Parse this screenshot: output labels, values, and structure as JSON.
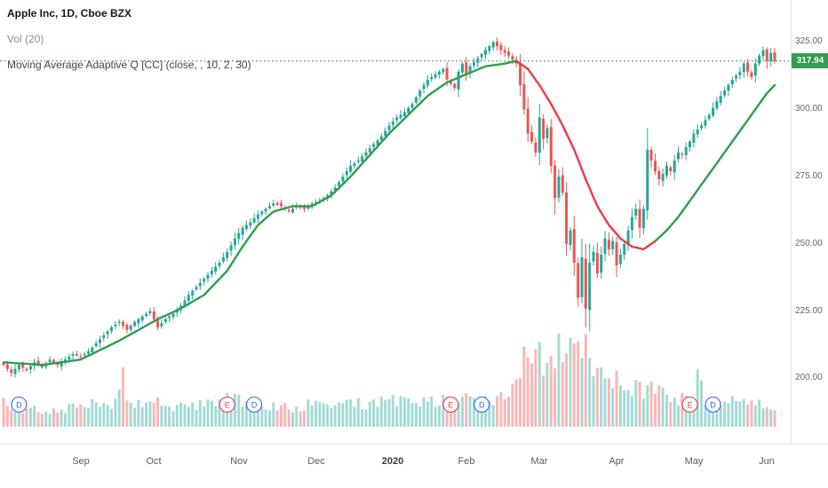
{
  "legend": {
    "symbol_title": "Apple Inc, 1D, Cboe BZX",
    "volume_label": "Vol (20)",
    "ma_label": "Moving Average Adaptive Q [CC] (close, , 10, 2, 30)"
  },
  "chart_data": {
    "type": "candlestick",
    "title": "Apple Inc, 1D, Cboe BZX",
    "symbol": "Apple Inc",
    "interval": "1D",
    "exchange": "Cboe BZX",
    "last_price": 317.94,
    "last_price_label": "317.94",
    "y_axis": {
      "range": [
        183,
        338
      ],
      "ticks": [
        {
          "v": 200,
          "label": "200.00"
        },
        {
          "v": 225,
          "label": "225.00"
        },
        {
          "v": 250,
          "label": "250.00"
        },
        {
          "v": 275,
          "label": "275.00"
        },
        {
          "v": 300,
          "label": "300.00"
        },
        {
          "v": 325,
          "label": "325.00"
        }
      ]
    },
    "x_axis": {
      "days": 200,
      "labels": [
        {
          "label": "Sep",
          "day": 20,
          "bold": false
        },
        {
          "label": "Oct",
          "day": 39,
          "bold": false
        },
        {
          "label": "Nov",
          "day": 61,
          "bold": false
        },
        {
          "label": "Dec",
          "day": 81,
          "bold": false
        },
        {
          "label": "2020",
          "day": 101,
          "bold": true
        },
        {
          "label": "Feb",
          "day": 120,
          "bold": false
        },
        {
          "label": "Mar",
          "day": 139,
          "bold": false
        },
        {
          "label": "Apr",
          "day": 159,
          "bold": false
        },
        {
          "label": "May",
          "day": 179,
          "bold": false
        },
        {
          "label": "Jun",
          "day": 198,
          "bold": false
        }
      ]
    },
    "price_anchors": [
      [
        0,
        205
      ],
      [
        2,
        202
      ],
      [
        4,
        205
      ],
      [
        6,
        203
      ],
      [
        8,
        206
      ],
      [
        10,
        204
      ],
      [
        12,
        207
      ],
      [
        14,
        205
      ],
      [
        16,
        207
      ],
      [
        18,
        209
      ],
      [
        20,
        208
      ],
      [
        22,
        210
      ],
      [
        24,
        213
      ],
      [
        26,
        216
      ],
      [
        28,
        219
      ],
      [
        30,
        221
      ],
      [
        32,
        218
      ],
      [
        34,
        221
      ],
      [
        36,
        223
      ],
      [
        38,
        225
      ],
      [
        40,
        219
      ],
      [
        42,
        222
      ],
      [
        44,
        224
      ],
      [
        46,
        227
      ],
      [
        48,
        231
      ],
      [
        50,
        234
      ],
      [
        52,
        237
      ],
      [
        54,
        240
      ],
      [
        56,
        243
      ],
      [
        58,
        247
      ],
      [
        60,
        252
      ],
      [
        62,
        256
      ],
      [
        64,
        258
      ],
      [
        66,
        261
      ],
      [
        68,
        263
      ],
      [
        70,
        265
      ],
      [
        72,
        264
      ],
      [
        74,
        262
      ],
      [
        76,
        264
      ],
      [
        78,
        263
      ],
      [
        80,
        265
      ],
      [
        82,
        266
      ],
      [
        84,
        268
      ],
      [
        86,
        271
      ],
      [
        88,
        275
      ],
      [
        90,
        279
      ],
      [
        92,
        281
      ],
      [
        94,
        284
      ],
      [
        96,
        287
      ],
      [
        98,
        290
      ],
      [
        100,
        294
      ],
      [
        102,
        297
      ],
      [
        104,
        299
      ],
      [
        106,
        302
      ],
      [
        108,
        307
      ],
      [
        110,
        311
      ],
      [
        112,
        313
      ],
      [
        114,
        315
      ],
      [
        115,
        311
      ],
      [
        117,
        308
      ],
      [
        118,
        314
      ],
      [
        119,
        317
      ],
      [
        120,
        313
      ],
      [
        121,
        316
      ],
      [
        123,
        319
      ],
      [
        125,
        322
      ],
      [
        127,
        325
      ],
      [
        129,
        322
      ],
      [
        131,
        320
      ],
      [
        133,
        317
      ],
      [
        134,
        309
      ],
      [
        135,
        300
      ],
      [
        136,
        291
      ],
      [
        137,
        288
      ],
      [
        138,
        284
      ],
      [
        139,
        297
      ],
      [
        140,
        289
      ],
      [
        141,
        293
      ],
      [
        142,
        279
      ],
      [
        143,
        267
      ],
      [
        144,
        275
      ],
      [
        145,
        269
      ],
      [
        146,
        250
      ],
      [
        147,
        255
      ],
      [
        148,
        243
      ],
      [
        149,
        230
      ],
      [
        150,
        245
      ],
      [
        151,
        226
      ],
      [
        152,
        243
      ],
      [
        153,
        247
      ],
      [
        154,
        239
      ],
      [
        155,
        246
      ],
      [
        156,
        252
      ],
      [
        157,
        248
      ],
      [
        158,
        251
      ],
      [
        159,
        242
      ],
      [
        160,
        246
      ],
      [
        161,
        250
      ],
      [
        162,
        255
      ],
      [
        163,
        260
      ],
      [
        164,
        263
      ],
      [
        165,
        256
      ],
      [
        166,
        263
      ],
      [
        167,
        285
      ],
      [
        168,
        281
      ],
      [
        169,
        277
      ],
      [
        170,
        274
      ],
      [
        171,
        276
      ],
      [
        172,
        279
      ],
      [
        173,
        277
      ],
      [
        174,
        281
      ],
      [
        175,
        284
      ],
      [
        176,
        283
      ],
      [
        177,
        286
      ],
      [
        178,
        288
      ],
      [
        179,
        291
      ],
      [
        181,
        294
      ],
      [
        183,
        298
      ],
      [
        185,
        303
      ],
      [
        187,
        307
      ],
      [
        189,
        311
      ],
      [
        191,
        314
      ],
      [
        192,
        317
      ],
      [
        193,
        314
      ],
      [
        194,
        312
      ],
      [
        195,
        317
      ],
      [
        196,
        320
      ],
      [
        197,
        322
      ],
      [
        198,
        318
      ],
      [
        199,
        321
      ],
      [
        200,
        317.94
      ]
    ],
    "ma": {
      "name": "Moving Average Adaptive Q",
      "red_segment": [
        133,
        169
      ],
      "anchors": [
        [
          0,
          206
        ],
        [
          10,
          205
        ],
        [
          20,
          207
        ],
        [
          30,
          214
        ],
        [
          40,
          222
        ],
        [
          46,
          226
        ],
        [
          52,
          231
        ],
        [
          58,
          240
        ],
        [
          62,
          249
        ],
        [
          66,
          257
        ],
        [
          70,
          262
        ],
        [
          75,
          264
        ],
        [
          80,
          264
        ],
        [
          85,
          268
        ],
        [
          90,
          275
        ],
        [
          95,
          283
        ],
        [
          100,
          291
        ],
        [
          105,
          298
        ],
        [
          110,
          305
        ],
        [
          115,
          310
        ],
        [
          120,
          313
        ],
        [
          125,
          316
        ],
        [
          130,
          317
        ],
        [
          133,
          318
        ],
        [
          136,
          315
        ],
        [
          139,
          309
        ],
        [
          142,
          302
        ],
        [
          145,
          294
        ],
        [
          148,
          285
        ],
        [
          151,
          274
        ],
        [
          154,
          264
        ],
        [
          157,
          257
        ],
        [
          160,
          252
        ],
        [
          163,
          249
        ],
        [
          166,
          248
        ],
        [
          169,
          251
        ],
        [
          172,
          255
        ],
        [
          175,
          260
        ],
        [
          178,
          266
        ],
        [
          181,
          272
        ],
        [
          184,
          278
        ],
        [
          187,
          284
        ],
        [
          190,
          290
        ],
        [
          193,
          296
        ],
        [
          196,
          302
        ],
        [
          198,
          306
        ],
        [
          200,
          309
        ]
      ]
    },
    "volume_anchors": [
      [
        0,
        26
      ],
      [
        4,
        18
      ],
      [
        8,
        22
      ],
      [
        12,
        16
      ],
      [
        16,
        20
      ],
      [
        20,
        22
      ],
      [
        24,
        26
      ],
      [
        28,
        24
      ],
      [
        30,
        34
      ],
      [
        31,
        58
      ],
      [
        32,
        30
      ],
      [
        36,
        22
      ],
      [
        40,
        28
      ],
      [
        44,
        20
      ],
      [
        48,
        24
      ],
      [
        52,
        26
      ],
      [
        56,
        30
      ],
      [
        60,
        32
      ],
      [
        64,
        26
      ],
      [
        68,
        22
      ],
      [
        72,
        24
      ],
      [
        76,
        22
      ],
      [
        80,
        26
      ],
      [
        84,
        24
      ],
      [
        88,
        28
      ],
      [
        92,
        26
      ],
      [
        96,
        28
      ],
      [
        100,
        30
      ],
      [
        104,
        28
      ],
      [
        108,
        32
      ],
      [
        112,
        30
      ],
      [
        116,
        28
      ],
      [
        120,
        30
      ],
      [
        124,
        28
      ],
      [
        128,
        30
      ],
      [
        131,
        36
      ],
      [
        133,
        50
      ],
      [
        134,
        72
      ],
      [
        135,
        96
      ],
      [
        136,
        82
      ],
      [
        137,
        66
      ],
      [
        138,
        86
      ],
      [
        140,
        76
      ],
      [
        142,
        82
      ],
      [
        144,
        92
      ],
      [
        146,
        86
      ],
      [
        148,
        96
      ],
      [
        150,
        90
      ],
      [
        152,
        80
      ],
      [
        154,
        72
      ],
      [
        156,
        62
      ],
      [
        158,
        56
      ],
      [
        160,
        52
      ],
      [
        162,
        48
      ],
      [
        164,
        44
      ],
      [
        166,
        42
      ],
      [
        167,
        56
      ],
      [
        168,
        46
      ],
      [
        170,
        40
      ],
      [
        172,
        36
      ],
      [
        174,
        34
      ],
      [
        176,
        32
      ],
      [
        178,
        30
      ],
      [
        180,
        56
      ],
      [
        182,
        32
      ],
      [
        184,
        30
      ],
      [
        186,
        28
      ],
      [
        188,
        30
      ],
      [
        190,
        28
      ],
      [
        192,
        26
      ],
      [
        194,
        24
      ],
      [
        196,
        28
      ],
      [
        198,
        22
      ],
      [
        200,
        20
      ]
    ],
    "markers": [
      {
        "type": "D",
        "day": 4
      },
      {
        "type": "E",
        "day": 58
      },
      {
        "type": "D",
        "day": 65
      },
      {
        "type": "E",
        "day": 116
      },
      {
        "type": "D",
        "day": 124
      },
      {
        "type": "E",
        "day": 178
      },
      {
        "type": "D",
        "day": 184
      }
    ],
    "colors": {
      "up": "#26a69a",
      "down": "#ef5350",
      "vol_up": "rgba(38,166,154,0.42)",
      "vol_down": "rgba(239,83,80,0.42)",
      "ma_up": "#2e9e4f",
      "ma_down": "#f23645",
      "last_line": "#2f9e4f",
      "badge_bg": "#2f9e4f",
      "badge_text": "#ffffff",
      "marker_e": "#f23645",
      "marker_d": "#2962ff"
    }
  }
}
